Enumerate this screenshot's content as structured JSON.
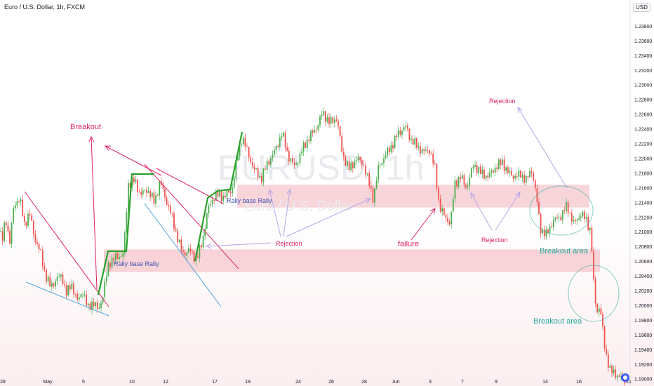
{
  "header": {
    "symbol_line": "Euro / U.S. Dollar, 1h, FXCM",
    "currency": "USD"
  },
  "watermark": {
    "main": "EURUSD, 1h",
    "sub": "Euro / U.S. Dollar"
  },
  "colors": {
    "zone": "#f5c7cc",
    "pink": "#e0245e",
    "purple": "#b7a4e8",
    "green": "#2ba02b",
    "blue": "#4aa3df",
    "teal": "#26a69a",
    "navy": "#3f51b5",
    "up": "#4caf50",
    "down": "#ef5350"
  },
  "chart_data": {
    "type": "candlestick",
    "title": "Euro / U.S. Dollar, 1h, FXCM",
    "ylim": [
      1.1894,
      1.24
    ],
    "y_ticks": [
      "1.23800",
      "1.23600",
      "1.23400",
      "1.23200",
      "1.23000",
      "1.22800",
      "1.22600",
      "1.22400",
      "1.22200",
      "1.22000",
      "1.21800",
      "1.21600",
      "1.21400",
      "1.21200",
      "1.21000",
      "1.20800",
      "1.20600",
      "1.20400",
      "1.20200",
      "1.20000",
      "1.19800",
      "1.19600",
      "1.19400",
      "1.19200",
      "1.19000"
    ],
    "x_ticks": [
      "28",
      "May",
      "5",
      "10",
      "12",
      "17",
      "19",
      "24",
      "26",
      "28",
      "Jun",
      "3",
      "7",
      "9",
      "14",
      "16",
      "21"
    ],
    "price_path": [
      [
        0,
        1.21
      ],
      [
        3,
        1.2085
      ],
      [
        8,
        1.212
      ],
      [
        14,
        1.2085
      ],
      [
        20,
        1.2138
      ],
      [
        28,
        1.2145
      ],
      [
        35,
        1.211
      ],
      [
        42,
        1.2125
      ],
      [
        50,
        1.209
      ],
      [
        58,
        1.207
      ],
      [
        65,
        1.204
      ],
      [
        72,
        1.2025
      ],
      [
        80,
        1.2035
      ],
      [
        88,
        1.204
      ],
      [
        95,
        1.2015
      ],
      [
        102,
        1.203
      ],
      [
        110,
        1.2005
      ],
      [
        118,
        1.202
      ],
      [
        125,
        1.1995
      ],
      [
        132,
        1.2005
      ],
      [
        140,
        1.1993
      ],
      [
        147,
        1.2015
      ],
      [
        155,
        1.2058
      ],
      [
        165,
        1.2065
      ],
      [
        176,
        1.207
      ],
      [
        183,
        1.2165
      ],
      [
        192,
        1.217
      ],
      [
        200,
        1.215
      ],
      [
        210,
        1.2158
      ],
      [
        220,
        1.214
      ],
      [
        228,
        1.2168
      ],
      [
        236,
        1.2145
      ],
      [
        245,
        1.212
      ],
      [
        252,
        1.2095
      ],
      [
        260,
        1.207
      ],
      [
        270,
        1.2075
      ],
      [
        280,
        1.2062
      ],
      [
        288,
        1.2085
      ],
      [
        296,
        1.213
      ],
      [
        306,
        1.215
      ],
      [
        318,
        1.2148
      ],
      [
        330,
        1.2155
      ],
      [
        338,
        1.22
      ],
      [
        345,
        1.223
      ],
      [
        352,
        1.221
      ],
      [
        362,
        1.2185
      ],
      [
        372,
        1.2172
      ],
      [
        382,
        1.2195
      ],
      [
        392,
        1.221
      ],
      [
        402,
        1.2235
      ],
      [
        410,
        1.2205
      ],
      [
        420,
        1.2188
      ],
      [
        430,
        1.221
      ],
      [
        440,
        1.2228
      ],
      [
        450,
        1.224
      ],
      [
        460,
        1.2262
      ],
      [
        470,
        1.2248
      ],
      [
        480,
        1.2255
      ],
      [
        488,
        1.2205
      ],
      [
        498,
        1.2185
      ],
      [
        508,
        1.22
      ],
      [
        518,
        1.2192
      ],
      [
        526,
        1.2165
      ],
      [
        532,
        1.2145
      ],
      [
        540,
        1.219
      ],
      [
        550,
        1.2205
      ],
      [
        560,
        1.222
      ],
      [
        568,
        1.2235
      ],
      [
        578,
        1.2243
      ],
      [
        586,
        1.2225
      ],
      [
        596,
        1.2215
      ],
      [
        604,
        1.2208
      ],
      [
        612,
        1.2212
      ],
      [
        620,
        1.2185
      ],
      [
        626,
        1.2135
      ],
      [
        634,
        1.212
      ],
      [
        642,
        1.2112
      ],
      [
        648,
        1.2165
      ],
      [
        656,
        1.2175
      ],
      [
        665,
        1.216
      ],
      [
        675,
        1.2192
      ],
      [
        685,
        1.218
      ],
      [
        696,
        1.2175
      ],
      [
        706,
        1.2188
      ],
      [
        716,
        1.2195
      ],
      [
        724,
        1.218
      ],
      [
        734,
        1.2175
      ],
      [
        742,
        1.2178
      ],
      [
        750,
        1.217
      ],
      [
        758,
        1.2185
      ],
      [
        764,
        1.215
      ],
      [
        770,
        1.2105
      ],
      [
        778,
        1.2095
      ],
      [
        788,
        1.2115
      ],
      [
        798,
        1.212
      ],
      [
        808,
        1.2135
      ],
      [
        818,
        1.211
      ],
      [
        828,
        1.2125
      ],
      [
        836,
        1.2115
      ],
      [
        842,
        1.21
      ],
      [
        846,
        1.203
      ],
      [
        850,
        1.199
      ],
      [
        855,
        1.2
      ],
      [
        862,
        1.194
      ],
      [
        870,
        1.191
      ],
      [
        880,
        1.1905
      ],
      [
        890,
        1.1898
      ]
    ],
    "zones": [
      {
        "y_top": 1.2164,
        "y_bottom": 1.2133
      },
      {
        "y_top": 1.2076,
        "y_bottom": 1.2045
      }
    ],
    "annotations": {
      "breakout": "Breakout",
      "rally_base_rally_1": "Rally base Rally",
      "rally_base_rally_2": "Rally base Rally",
      "rejection_1": "Rejection",
      "rejection_2": "Rejection",
      "rejection_3": "Rejection",
      "failure": "failure",
      "breakout_area_1": "Breakout area",
      "breakout_area_2": "Breakout area"
    }
  }
}
